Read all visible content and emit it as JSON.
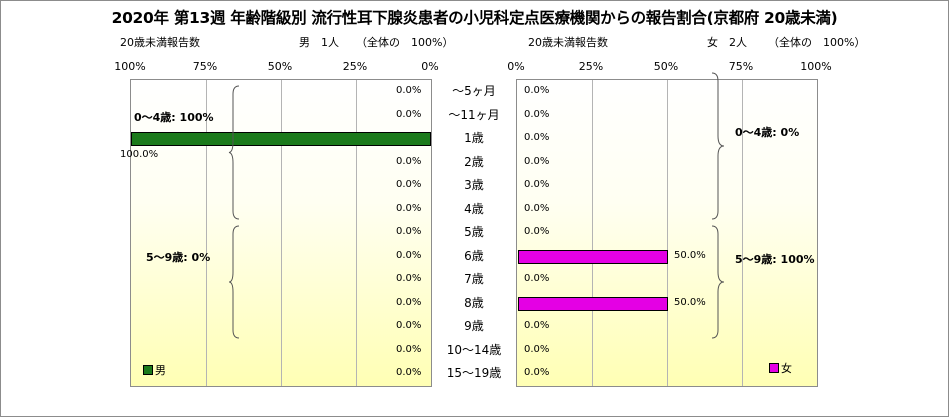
{
  "title": "2020年 第13週 年齢階級別 流行性耳下腺炎患者の小児科定点医療機関からの報告割合(京都府 20歳未満)",
  "male_header": {
    "count_label": "20歳未満報告数",
    "total_label": "男　1人",
    "share_label": "（全体の　100%）"
  },
  "female_header": {
    "count_label": "20歳未満報告数",
    "total_label": "女　2人",
    "share_label": "（全体の　100%）"
  },
  "chart_data": {
    "type": "bar",
    "orientation": "horizontal",
    "layout": "population-pyramid",
    "categories": [
      "～5ヶ月",
      "～11ヶ月",
      "1歳",
      "2歳",
      "3歳",
      "4歳",
      "5歳",
      "6歳",
      "7歳",
      "8歳",
      "9歳",
      "10～14歳",
      "15～19歳"
    ],
    "series": [
      {
        "name": "男",
        "color": "#1b7a1b",
        "values": [
          0,
          0,
          100,
          0,
          0,
          0,
          0,
          0,
          0,
          0,
          0,
          0,
          0
        ],
        "labels": [
          "0.0%",
          "0.0%",
          "100.0%",
          "0.0%",
          "0.0%",
          "0.0%",
          "0.0%",
          "0.0%",
          "0.0%",
          "0.0%",
          "0.0%",
          "0.0%",
          "0.0%"
        ]
      },
      {
        "name": "女",
        "color": "#e400e4",
        "values": [
          0,
          0,
          0,
          0,
          0,
          0,
          0,
          50,
          0,
          50,
          0,
          0,
          0
        ],
        "labels": [
          "0.0%",
          "0.0%",
          "0.0%",
          "0.0%",
          "0.0%",
          "0.0%",
          "0.0%",
          "50.0%",
          "0.0%",
          "50.0%",
          "0.0%",
          "0.0%",
          "0.0%"
        ]
      }
    ],
    "male_ticks": [
      "100%",
      "75%",
      "50%",
      "25%",
      "0%"
    ],
    "female_ticks": [
      "0%",
      "25%",
      "50%",
      "75%",
      "100%"
    ],
    "xlim": [
      0,
      100
    ],
    "grid": true,
    "group_annotations": {
      "male": [
        "0～4歳: 100%",
        "5～9歳: 0%"
      ],
      "female": [
        "0～4歳: 0%",
        "5～9歳: 100%"
      ]
    },
    "legend": {
      "male": "男",
      "female": "女"
    }
  }
}
